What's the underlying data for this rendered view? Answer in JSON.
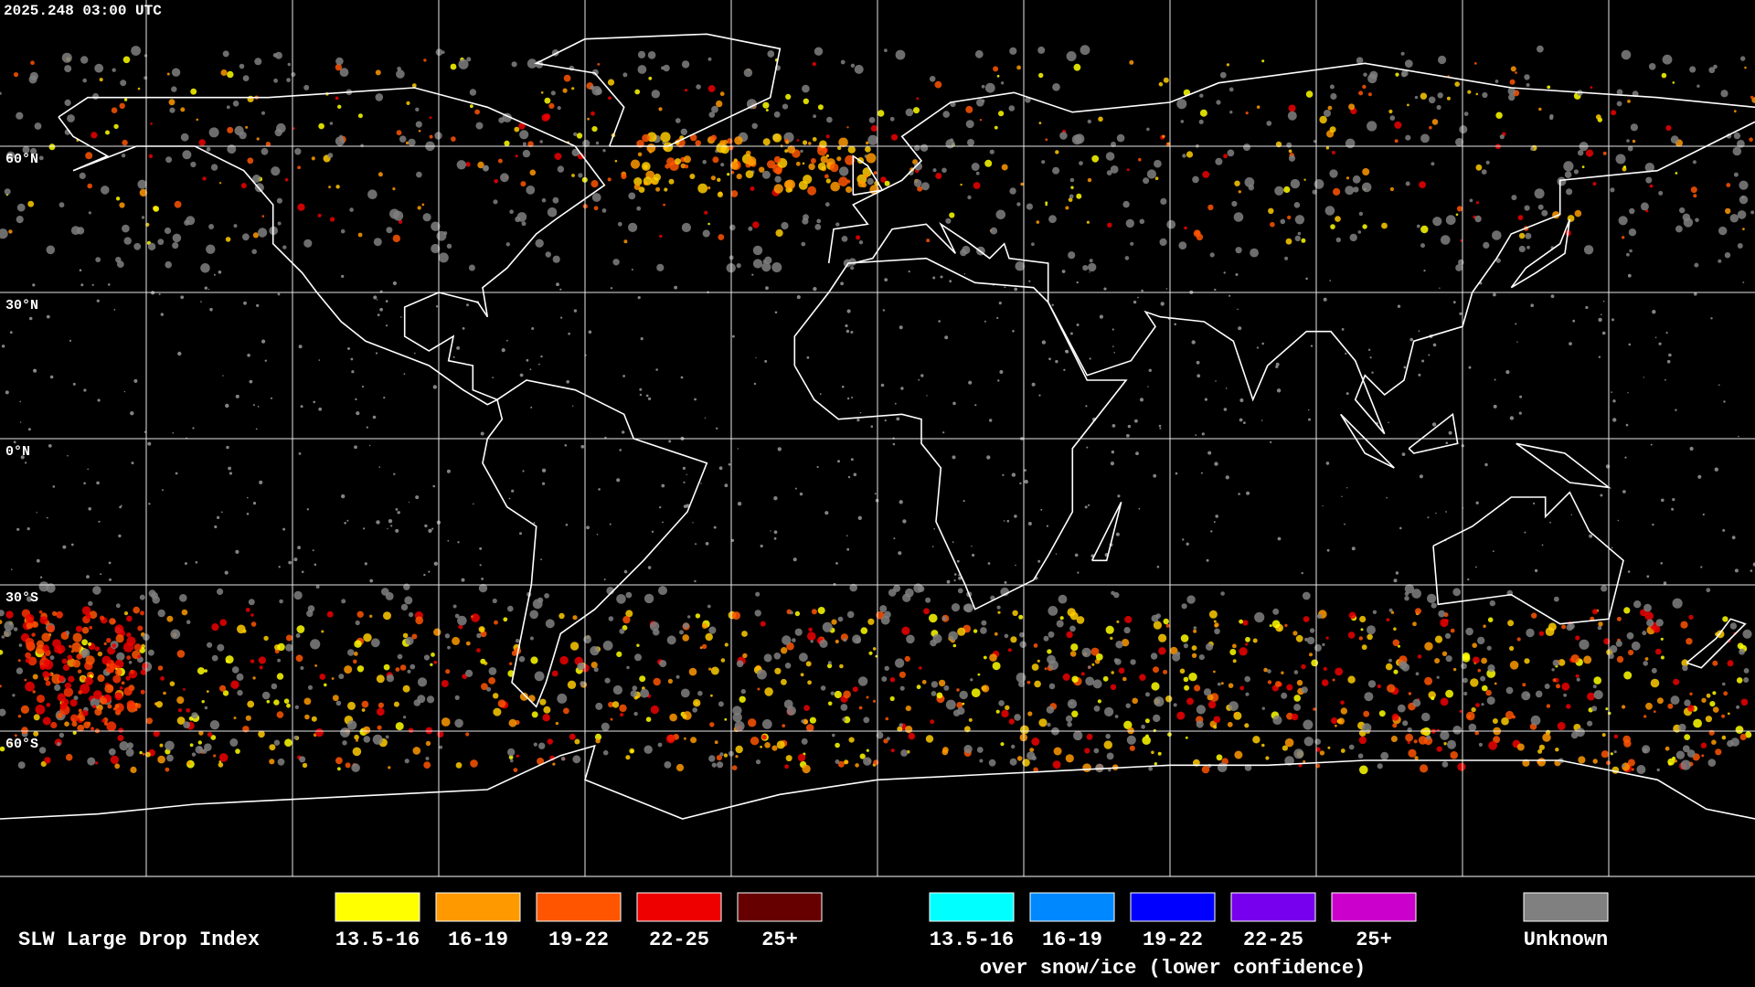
{
  "header": {
    "timestamp": "2025.248 03:00 UTC"
  },
  "map": {
    "lat_labels": [
      "60°N",
      "30°N",
      "0°N",
      "30°S",
      "60°S"
    ]
  },
  "legend": {
    "title": "SLW Large Drop Index",
    "groups": [
      {
        "items": [
          {
            "label": "13.5-16",
            "color": "#ffff00"
          },
          {
            "label": "16-19",
            "color": "#ff9900"
          },
          {
            "label": "19-22",
            "color": "#ff5500"
          },
          {
            "label": "22-25",
            "color": "#ee0000"
          },
          {
            "label": "25+",
            "color": "#660000"
          }
        ]
      },
      {
        "items": [
          {
            "label": "13.5-16",
            "color": "#00ffff"
          },
          {
            "label": "16-19",
            "color": "#0088ff"
          },
          {
            "label": "19-22",
            "color": "#0000ff"
          },
          {
            "label": "22-25",
            "color": "#7700ee"
          },
          {
            "label": "25+",
            "color": "#cc00cc"
          }
        ],
        "caption": "over snow/ice (lower confidence)"
      },
      {
        "items": [
          {
            "label": "Unknown",
            "color": "#808080"
          }
        ]
      }
    ]
  }
}
